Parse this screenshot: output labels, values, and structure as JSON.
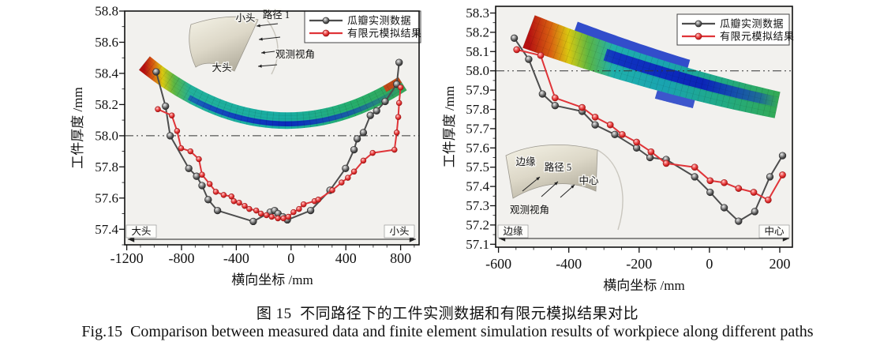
{
  "figure": {
    "caption_zh": "图 15  不同路径下的工件实测数据和有限元模拟结果对比",
    "caption_en": "Fig.15  Comparison between measured data and finite element simulation results of workpiece along different paths"
  },
  "colors": {
    "measured": "#4d4d4d",
    "simulated": "#e03438",
    "reference_line": "#333333",
    "plot_background": "#f2f1ee",
    "frame": "#111111"
  },
  "chart_data": [
    {
      "type": "line",
      "xlabel": "横向坐标 /mm",
      "ylabel": "工件厚度 /mm",
      "xlim": [
        -1215,
        935
      ],
      "ylim": [
        57.3,
        58.8
      ],
      "xticks": [
        -1200,
        -800,
        -400,
        0,
        400,
        800
      ],
      "yticks": [
        57.4,
        57.6,
        57.8,
        58.0,
        58.2,
        58.4,
        58.6,
        58.8
      ],
      "x_minor_step": 100,
      "y_minor_step": 0.1,
      "y_decimals": 1,
      "grid": false,
      "refline_y": 58.0,
      "legend_position": "top-right",
      "axis_start_label": "大头",
      "axis_end_label": "小头",
      "inset_labels": [
        "小头",
        "路径 1",
        "大头",
        "观测视角"
      ],
      "series": [
        {
          "name": "瓜瓣实测数据",
          "color": "#4d4d4d",
          "marker": "circle",
          "points": [
            [
              -985,
              58.41
            ],
            [
              -917,
              58.19
            ],
            [
              -883,
              58.0
            ],
            [
              -747,
              57.79
            ],
            [
              -690,
              57.74
            ],
            [
              -650,
              57.68
            ],
            [
              -605,
              57.59
            ],
            [
              -537,
              57.52
            ],
            [
              -276,
              57.45
            ],
            [
              -152,
              57.51
            ],
            [
              -120,
              57.52
            ],
            [
              -95,
              57.5
            ],
            [
              -60,
              57.48
            ],
            [
              -27,
              57.46
            ],
            [
              143,
              57.52
            ],
            [
              284,
              57.65
            ],
            [
              398,
              57.79
            ],
            [
              460,
              57.91
            ],
            [
              483,
              57.98
            ],
            [
              528,
              58.02
            ],
            [
              579,
              58.13
            ],
            [
              625,
              58.16
            ],
            [
              687,
              58.22
            ],
            [
              772,
              58.33
            ],
            [
              789,
              58.47
            ]
          ]
        },
        {
          "name": "有限元模拟结果",
          "color": "#e03438",
          "marker": "circle",
          "points": [
            [
              -973,
              58.17
            ],
            [
              -871,
              58.13
            ],
            [
              -832,
              58.03
            ],
            [
              -803,
              57.92
            ],
            [
              -735,
              57.9
            ],
            [
              -673,
              57.85
            ],
            [
              -650,
              57.75
            ],
            [
              -594,
              57.69
            ],
            [
              -549,
              57.64
            ],
            [
              -492,
              57.62
            ],
            [
              -435,
              57.61
            ],
            [
              -418,
              57.58
            ],
            [
              -379,
              57.57
            ],
            [
              -339,
              57.55
            ],
            [
              -305,
              57.53
            ],
            [
              -254,
              57.52
            ],
            [
              -220,
              57.5
            ],
            [
              -180,
              57.49
            ],
            [
              -141,
              57.48
            ],
            [
              -96,
              57.47
            ],
            [
              -56,
              57.47
            ],
            [
              -20,
              57.48
            ],
            [
              18,
              57.51
            ],
            [
              58,
              57.53
            ],
            [
              92,
              57.56
            ],
            [
              171,
              57.58
            ],
            [
              199,
              57.59
            ],
            [
              301,
              57.65
            ],
            [
              369,
              57.7
            ],
            [
              415,
              57.73
            ],
            [
              460,
              57.77
            ],
            [
              528,
              57.84
            ],
            [
              596,
              57.89
            ],
            [
              755,
              57.91
            ],
            [
              772,
              58.02
            ],
            [
              783,
              58.12
            ],
            [
              789,
              58.21
            ],
            [
              800,
              58.31
            ]
          ]
        }
      ]
    },
    {
      "type": "line",
      "xlabel": "横向坐标 /mm",
      "ylabel": "工件厚度 /mm",
      "xlim": [
        -608,
        236
      ],
      "ylim": [
        57.085,
        58.335
      ],
      "xticks": [
        -600,
        -400,
        -200,
        0,
        200
      ],
      "yticks": [
        57.1,
        57.2,
        57.3,
        57.4,
        57.5,
        57.6,
        57.7,
        57.8,
        57.9,
        58.0,
        58.1,
        58.2,
        58.3
      ],
      "x_minor_step": 50,
      "y_minor_step": 0.05,
      "y_decimals": 1,
      "grid": false,
      "refline_y": 58.0,
      "legend_position": "top-right",
      "axis_start_label": "边缘",
      "axis_end_label": "中心",
      "inset_labels": [
        "边缘",
        "路径 5",
        "中心",
        "观测视角"
      ],
      "series": [
        {
          "name": "瓜瓣实测数据",
          "color": "#4d4d4d",
          "marker": "circle",
          "points": [
            [
              -555,
              58.17
            ],
            [
              -514,
              58.06
            ],
            [
              -475,
              57.88
            ],
            [
              -439,
              57.82
            ],
            [
              -362,
              57.79
            ],
            [
              -325,
              57.72
            ],
            [
              -269,
              57.67
            ],
            [
              -207,
              57.6
            ],
            [
              -169,
              57.55
            ],
            [
              -123,
              57.54
            ],
            [
              -42,
              57.45
            ],
            [
              2,
              57.37
            ],
            [
              42,
              57.29
            ],
            [
              83,
              57.22
            ],
            [
              129,
              57.27
            ],
            [
              172,
              57.45
            ],
            [
              208,
              57.56
            ]
          ]
        },
        {
          "name": "有限元模拟结果",
          "color": "#e03438",
          "marker": "circle",
          "points": [
            [
              -548,
              58.11
            ],
            [
              -480,
              58.08
            ],
            [
              -439,
              57.86
            ],
            [
              -362,
              57.81
            ],
            [
              -325,
              57.76
            ],
            [
              -282,
              57.72
            ],
            [
              -248,
              57.67
            ],
            [
              -207,
              57.63
            ],
            [
              -166,
              57.58
            ],
            [
              -123,
              57.52
            ],
            [
              -42,
              57.5
            ],
            [
              2,
              57.43
            ],
            [
              42,
              57.42
            ],
            [
              83,
              57.39
            ],
            [
              126,
              57.37
            ],
            [
              167,
              57.33
            ],
            [
              208,
              57.46
            ]
          ]
        }
      ]
    }
  ]
}
